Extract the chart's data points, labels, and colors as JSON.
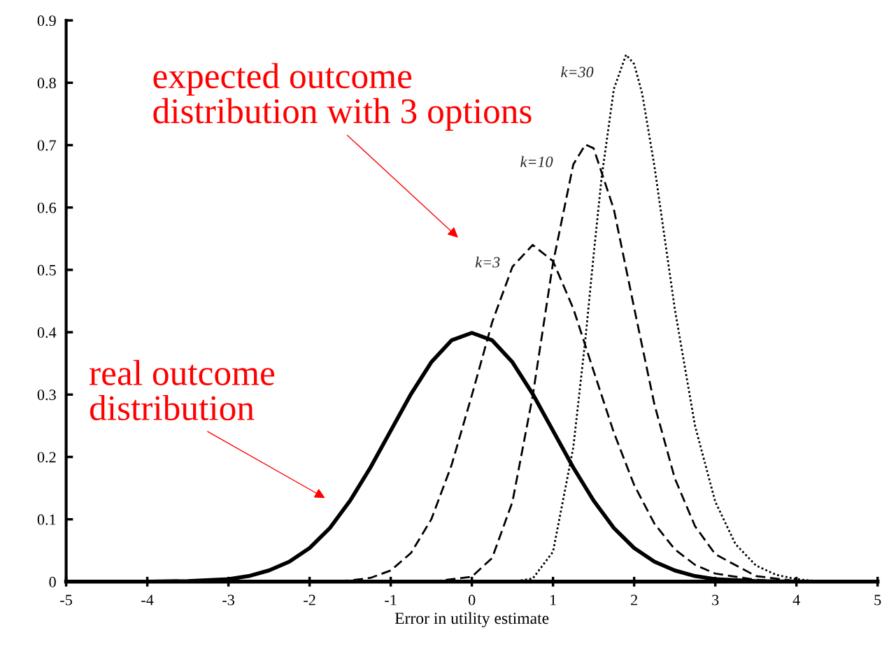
{
  "chart_data": {
    "type": "line",
    "xlabel": "Error in utility estimate",
    "xlim": [
      -5,
      5
    ],
    "ylim": [
      0,
      0.9
    ],
    "xticks": [
      {
        "value": -5,
        "label": "-5"
      },
      {
        "value": -4,
        "label": "-4"
      },
      {
        "value": -3,
        "label": "-3"
      },
      {
        "value": -2,
        "label": "-2"
      },
      {
        "value": -1,
        "label": "-1"
      },
      0,
      1,
      2,
      3,
      4,
      5
    ],
    "yticks": [
      0,
      0.1,
      0.2,
      0.3,
      0.4,
      0.5,
      0.6,
      0.7,
      0.8,
      0.9
    ],
    "grid": false,
    "legend": false,
    "series": [
      {
        "color": "#000000",
        "line_style": "solid",
        "x": [
          -4,
          -3.5,
          -3,
          -2.75,
          -2.5,
          -2.25,
          -2,
          -1.75,
          -1.5,
          -1.25,
          -1,
          -0.75,
          -0.5,
          -0.25,
          0,
          0.25,
          0.5,
          0.75,
          1,
          1.25,
          1.5,
          1.75,
          2,
          2.25,
          2.5,
          2.75,
          3,
          3.5,
          4
        ],
        "values": [
          0,
          0.001,
          0.004,
          0.009,
          0.018,
          0.032,
          0.054,
          0.086,
          0.13,
          0.183,
          0.242,
          0.301,
          0.352,
          0.387,
          0.399,
          0.387,
          0.352,
          0.301,
          0.242,
          0.183,
          0.13,
          0.086,
          0.054,
          0.032,
          0.018,
          0.009,
          0.004,
          0.001,
          0
        ]
      },
      {
        "name": "k=3",
        "color": "#000000",
        "line_style": "dashed",
        "x": [
          -2,
          -1.5,
          -1.25,
          -1,
          -0.75,
          -0.5,
          -0.25,
          0,
          0.25,
          0.5,
          0.75,
          1,
          1.25,
          1.5,
          1.75,
          2,
          2.25,
          2.5,
          2.75,
          3,
          3.5,
          4
        ],
        "values": [
          0,
          0.002,
          0.006,
          0.018,
          0.046,
          0.1,
          0.187,
          0.299,
          0.416,
          0.505,
          0.54,
          0.514,
          0.438,
          0.338,
          0.239,
          0.155,
          0.093,
          0.052,
          0.027,
          0.013,
          0.003,
          0
        ]
      },
      {
        "name": "k=10",
        "color": "#000000",
        "line_style": "dashed",
        "x": [
          -0.5,
          0,
          0.25,
          0.5,
          0.75,
          1,
          1.25,
          1.4,
          1.5,
          1.75,
          2,
          2.25,
          2.5,
          2.75,
          3,
          3.5,
          4
        ],
        "values": [
          0,
          0.008,
          0.038,
          0.128,
          0.298,
          0.511,
          0.669,
          0.701,
          0.695,
          0.597,
          0.439,
          0.284,
          0.166,
          0.089,
          0.044,
          0.009,
          0.001
        ]
      },
      {
        "name": "k=30",
        "color": "#000000",
        "line_style": "dotted",
        "x": [
          0.5,
          0.75,
          1,
          1.25,
          1.4,
          1.5,
          1.6,
          1.75,
          1.9,
          2,
          2.1,
          2.25,
          2.5,
          2.75,
          3,
          3.25,
          3.5,
          3.75,
          4,
          4.25
        ],
        "values": [
          0,
          0.005,
          0.048,
          0.215,
          0.39,
          0.523,
          0.649,
          0.79,
          0.845,
          0.83,
          0.782,
          0.666,
          0.438,
          0.25,
          0.128,
          0.06,
          0.026,
          0.011,
          0.004,
          0.001
        ]
      }
    ],
    "annotations": [
      "expected outcome\ndistribution with 3 options",
      "real outcome\ndistribution"
    ]
  }
}
